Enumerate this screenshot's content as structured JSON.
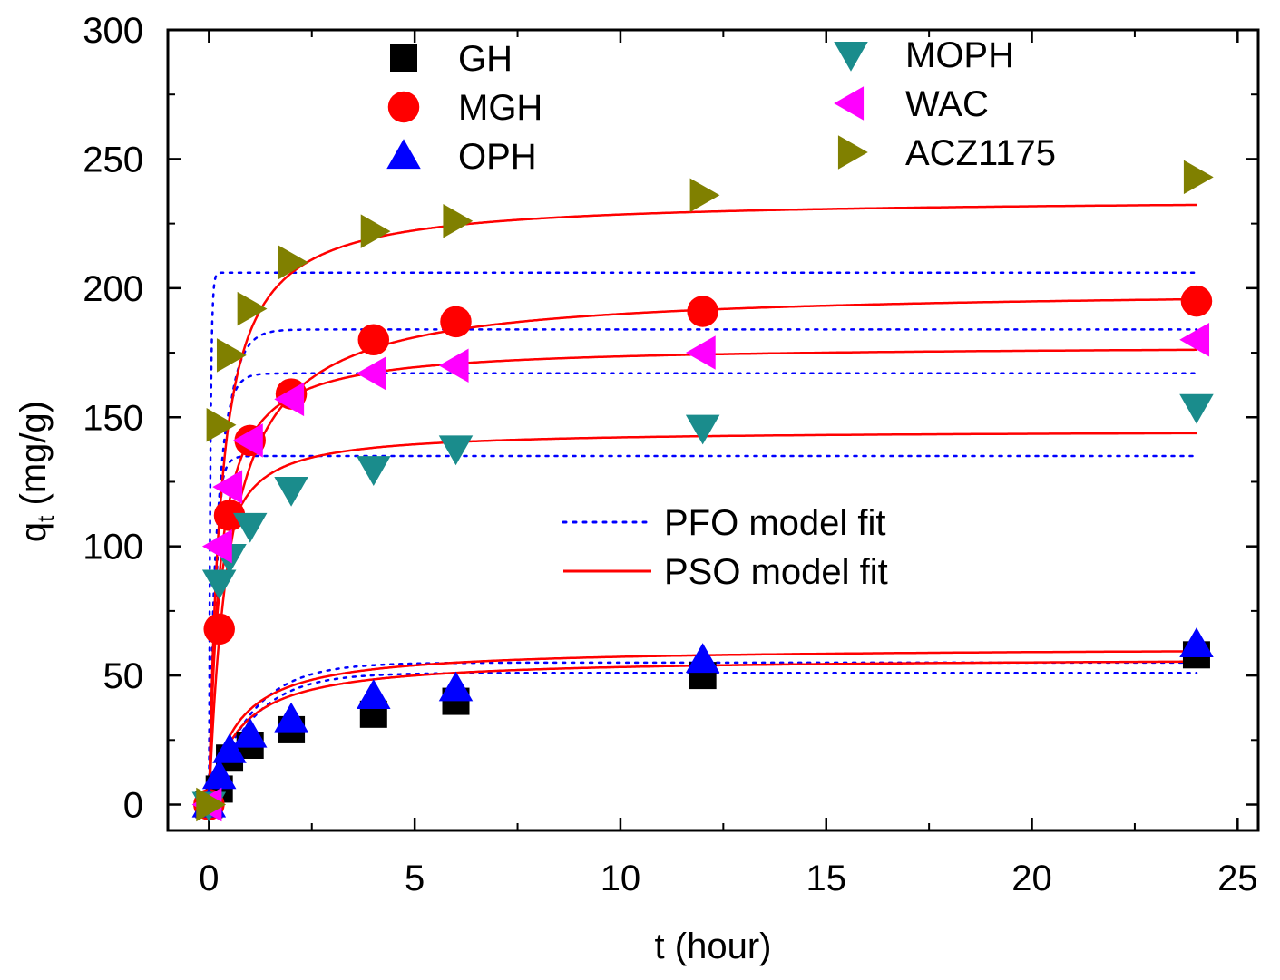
{
  "chart_data": {
    "type": "scatter",
    "title": "",
    "xlabel": "t (hour)",
    "ylabel_main": "q",
    "ylabel_sub": "t",
    "ylabel_unit": " (mg/g)",
    "xlim": [
      -1,
      25.5
    ],
    "ylim": [
      -10,
      300
    ],
    "xticks": [
      0,
      5,
      10,
      15,
      20,
      25
    ],
    "yticks": [
      0,
      50,
      100,
      150,
      200,
      250,
      300
    ],
    "xtick_labels": [
      "0",
      "5",
      "10",
      "15",
      "20",
      "25"
    ],
    "ytick_labels": [
      "0",
      "50",
      "100",
      "150",
      "200",
      "250",
      "300"
    ],
    "x": [
      0,
      0.25,
      0.5,
      1,
      2,
      4,
      6,
      12,
      24
    ],
    "series": [
      {
        "name": "GH",
        "marker": "square",
        "color": "#000000",
        "values": [
          0,
          6,
          18,
          23,
          29,
          35,
          40,
          50,
          58
        ],
        "pfo": {
          "qe": 51,
          "k": 1.0
        },
        "pso": {
          "qe": 57,
          "k": 0.025
        }
      },
      {
        "name": "MGH",
        "marker": "circle",
        "color": "#ff0000",
        "values": [
          0,
          68,
          112,
          141,
          159,
          180,
          187,
          191,
          195
        ],
        "pfo": {
          "qe": 184,
          "k": 3.5
        },
        "pso": {
          "qe": 200,
          "k": 0.0095
        }
      },
      {
        "name": "OPH",
        "marker": "triangle-up",
        "color": "#0000ff",
        "values": [
          0,
          11,
          21,
          27,
          33,
          42,
          45,
          56,
          62
        ],
        "pfo": {
          "qe": 55,
          "k": 1.0
        },
        "pso": {
          "qe": 61,
          "k": 0.025
        }
      },
      {
        "name": "MOPH",
        "marker": "triangle-down",
        "color": "#1a8c8c",
        "values": [
          0,
          86,
          96,
          108,
          122,
          130,
          138,
          146,
          154
        ],
        "pfo": {
          "qe": 135,
          "k": 8.0
        },
        "pso": {
          "qe": 145,
          "k": 0.035
        }
      },
      {
        "name": "WAC",
        "marker": "triangle-left",
        "color": "#ff00ff",
        "values": [
          0,
          100,
          123,
          141,
          157,
          167,
          170,
          175,
          180
        ],
        "pfo": {
          "qe": 167,
          "k": 5.0
        },
        "pso": {
          "qe": 178,
          "k": 0.022
        }
      },
      {
        "name": "ACZ1175",
        "marker": "triangle-right",
        "color": "#808000",
        "values": [
          0,
          147,
          174,
          192,
          210,
          222,
          226,
          236,
          243
        ],
        "pfo": {
          "qe": 206,
          "k": 30.0
        },
        "pso": {
          "qe": 235,
          "k": 0.015
        }
      }
    ],
    "fit_legend": [
      {
        "label": "PFO model fit",
        "style": "dotted",
        "color": "#0000ff"
      },
      {
        "label": "PSO model fit",
        "style": "solid",
        "color": "#ff0000"
      }
    ],
    "legend_position": "top",
    "grid": false
  }
}
